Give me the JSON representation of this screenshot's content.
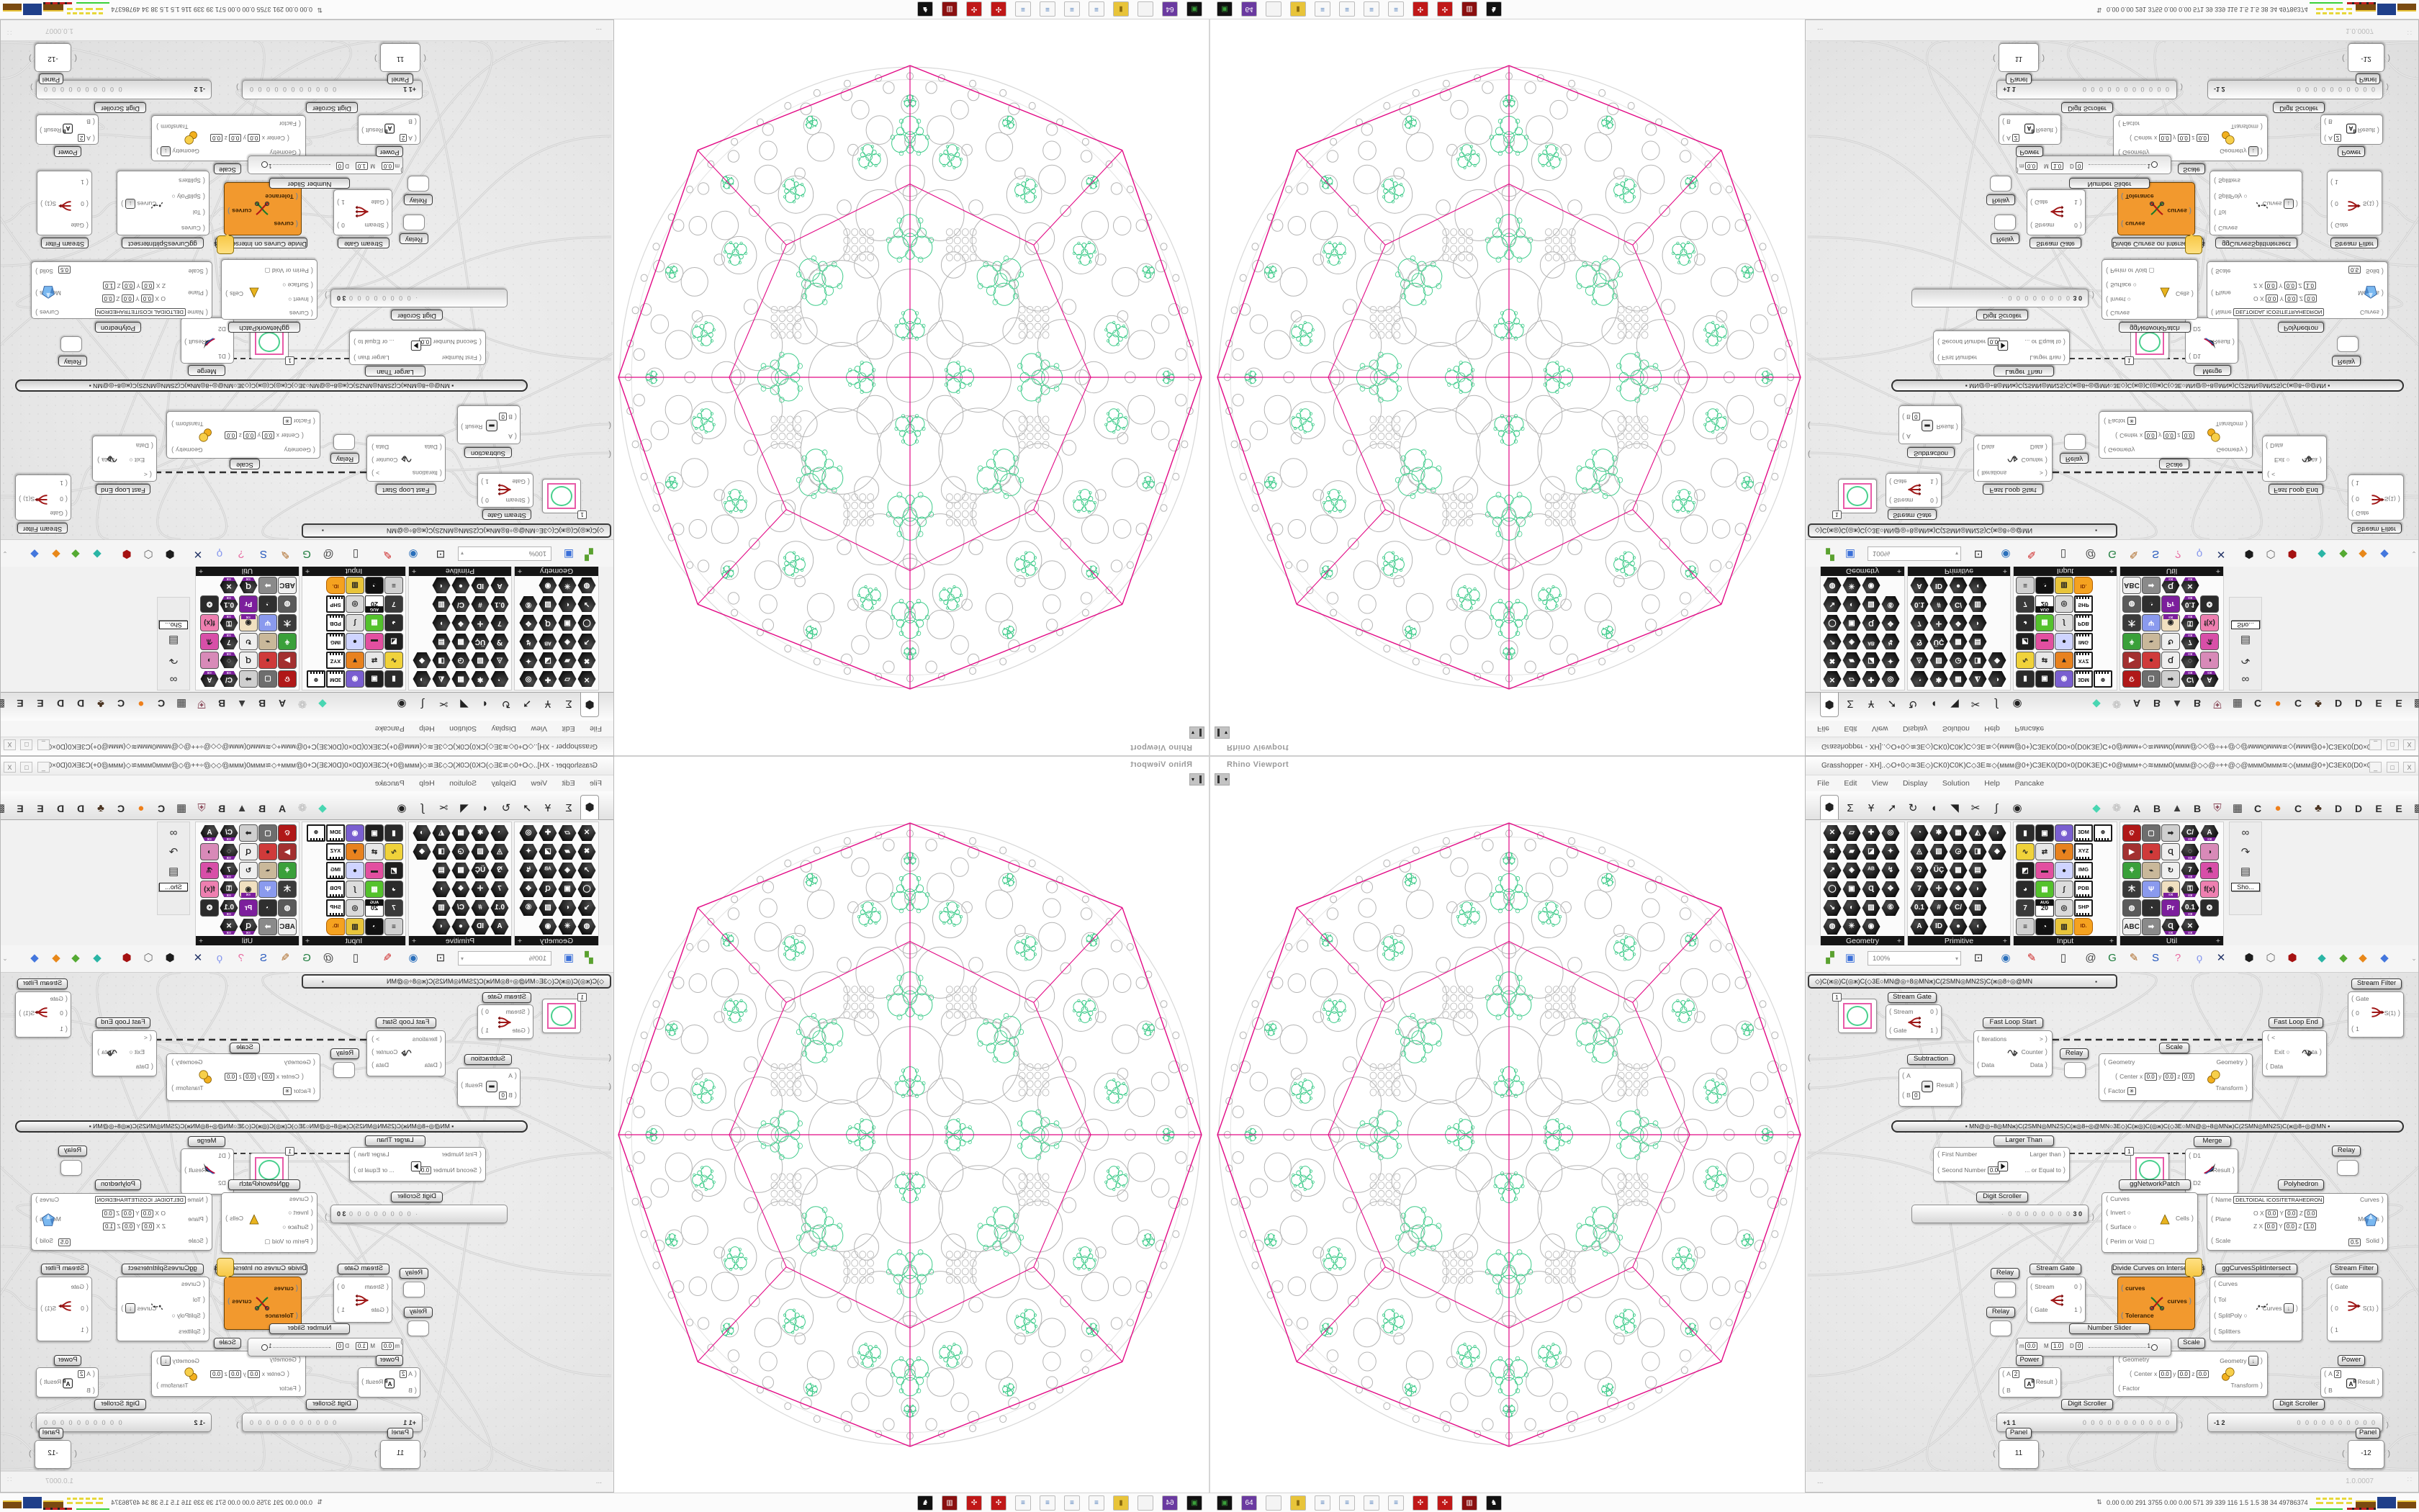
{
  "window": {
    "title": "Grasshopper - XH]..◇O+0◇≋3E◇)CK0)C0K)C◇3E≋◇(ммм@0+)C3EK0(D0×0(D0K3E)C+0@ммм+◇≋ммм0(ммм@◇◇@÷++@◇@ммм0ммм≋◇(ммм@0+)C3EK0(D0×0(D..",
    "icon": "X",
    "buttons": [
      "_",
      "□",
      "X"
    ]
  },
  "menu": {
    "items": [
      "File",
      "Edit",
      "View",
      "Display",
      "Solution",
      "Help",
      "Pancake"
    ]
  },
  "category_tabs": {
    "standard": [
      {
        "label": "⬢",
        "name": "params-tab",
        "sel": true
      },
      {
        "label": "Σ",
        "name": "maths-tab"
      },
      {
        "label": "Ұ",
        "name": "sets-tab"
      },
      {
        "label": "➚",
        "name": "vector-tab"
      },
      {
        "label": "↻",
        "name": "curve-tab"
      },
      {
        "label": "◖",
        "name": "surface-tab"
      },
      {
        "label": "◥",
        "name": "mesh-tab"
      },
      {
        "label": "✂",
        "name": "intersect-tab"
      },
      {
        "label": "∫",
        "name": "transform-tab"
      },
      {
        "label": "◉",
        "name": "display-tab"
      }
    ],
    "plugins": [
      {
        "label": "◆",
        "style": "teal"
      },
      {
        "label": "❁",
        "style": "outline"
      },
      {
        "label": "A",
        "style": "letter"
      },
      {
        "label": "B",
        "style": "letter"
      },
      {
        "label": "▲",
        "style": "dark"
      },
      {
        "label": "B",
        "style": "letter"
      },
      {
        "label": "⛨",
        "style": "shield"
      },
      {
        "label": "▦",
        "style": "dark"
      },
      {
        "label": "C",
        "style": "letter"
      },
      {
        "label": "●",
        "style": "orange"
      },
      {
        "label": "C",
        "style": "letter"
      },
      {
        "label": "♣",
        "style": "brown"
      },
      {
        "label": "D",
        "style": "letter"
      },
      {
        "label": "D",
        "style": "letter"
      },
      {
        "label": "E",
        "style": "letter"
      },
      {
        "label": "E",
        "style": "letter"
      },
      {
        "label": "▩",
        "style": "dark"
      }
    ]
  },
  "palette": {
    "footer_plus": "+",
    "overflow_label": "Sho...",
    "panels": [
      {
        "name": "Geometry",
        "icons": [
          [
            "hex,✕",
            "hex,▱",
            "hex,✚",
            "hex,◎"
          ],
          [
            "hex,✖",
            "hex,▰",
            "hex,◪",
            "hex,✦"
          ],
          [
            "hex,↗",
            "hex,◈",
            "hex,ᴬᴮ",
            "hex,↯"
          ],
          [
            "hex,◯",
            "hex,▣",
            "hex,Ɋ",
            "hex,✥"
          ],
          [
            "hex,↘",
            "hex,◐",
            "hex,▨",
            "hex,⑥"
          ],
          [
            "hex,◍",
            "hex,✳",
            "hex,◉"
          ]
        ]
      },
      {
        "name": "Primitive",
        "icons": [
          [
            "hex,◔",
            "hex,✱",
            "hex,▦",
            "hex,◭",
            "hex,◑"
          ],
          [
            "hex,◬",
            "hex,▧",
            "hex,◶",
            "hex,◨",
            "hex,◆"
          ],
          [
            "hex,⅋",
            "hex,ÜÇ",
            "hex,▩",
            "hex,▤"
          ],
          [
            "hex,7",
            "hex,✛",
            "hex,❖",
            "hex,◗"
          ],
          [
            "hex,0.1",
            "hex,#",
            "hex,C/",
            "hex,▥"
          ],
          [
            "hex,A",
            "hex,ID",
            "hex,●",
            "hex,◖"
          ]
        ]
      },
      {
        "name": "Input",
        "icons": [
          [
            "col,▮,#2b2b2b",
            "col,▣,#1f1f1f",
            "col,◉,#7a5fd0",
            "chip,3DM",
            "chip,⊕"
          ],
          [
            "col,∿,#f0d23a",
            "col,⇄,#e8e8e8",
            "col,▼,#e8821e",
            "chip,XYZ"
          ],
          [
            "col,◩,#1f1f1f",
            "col,▬,#e24fa0",
            "col,●,#cfd4ff",
            "chip,IMG"
          ],
          [
            "col,◕,#2b2b2b",
            "col,▦,#54c22c",
            "col,∫,#dddddd",
            "chip,PDB"
          ],
          [
            "col,7,#3a3a3a",
            "cal,20",
            "col,◎,#d9d9d9",
            "chip,SHP"
          ],
          [
            "col,≡,#d0d0d0",
            "col,◔,#111111",
            "col,▥,#e8c43a",
            "tag,ID."
          ]
        ]
      },
      {
        "name": "Util",
        "icons": [
          [
            "col,ତ,#b01818",
            "col,▢,#6e6e6e",
            "col,➡,#cfcfcf",
            "hexb,C/",
            "hexb,A"
          ],
          [
            "col,▶,#a33030",
            "col,●,#cf3a3a",
            "col,Ɋ,#efefef",
            "hexb,◌",
            "col,◑,#d88ab8"
          ],
          [
            "col,⚘,#3aa03a",
            "col,⌁,#c9b89a",
            "col,↻,#efefef",
            "hexb,7",
            "col,⚗,#d84fa8"
          ],
          [
            "col,⽊,#3a3a3a",
            "col,Ψ,#8a9aee",
            "colb,◉,#f0e0c0",
            "hexb,⚿",
            "col,f(x),#ee7fb0"
          ],
          [
            "col,◍,#5a5a5a",
            "col,◔,#2f2f2f",
            "col,Pr,#7c1f9c",
            "hexb,0.1",
            "col,❂,#2b2b2b"
          ],
          [
            "col,ABC,#efefef",
            "col,➡,#8a8a8a",
            "hexb,Ɋ",
            "hexb,✕"
          ]
        ]
      }
    ]
  },
  "toolbar": {
    "zoom": "100%",
    "dropdown": "▾"
  },
  "doc_tab": {
    "text": "◇)C(ж◎)C(◎ж)C(◇3E○MN@◎÷8◎MNж)C(2SMN◎MN2S)C(ж◎8÷◎@MN",
    "marker": "▪"
  },
  "group_bar": {
    "text": "▪   MN@◎÷8◎MNж)C(2SMN◎MN2S)C(ж◎8÷◎@MN○3E◇)C(ж◎)C(◎ж)C(◇3E○MN@◎÷8◎MNж)C(2SMN◎MN2S)C(ж◎8÷◎@MN   ▪"
  },
  "viewport": {
    "label": "Rhino Viewport",
    "dropdown": "▾"
  },
  "status": {
    "left": "...",
    "right": "1.0.0007",
    "grip": "∷"
  },
  "tray": {
    "arrow": "⇅",
    "stats": "0.00 0.00  291 3755 0.00 0.00  571   39   339  116   1.5   1.5   38    34  49786374",
    "monitor_icons": [
      "yellow-graph-icon",
      "brown-bar-icon",
      "blue-bar-icon",
      "brown-bar-icon",
      "green-line-icon",
      "red-dashes-icon"
    ]
  },
  "taskbar_icons": [
    "drive-green-icon",
    "floppy-64-icon",
    "ghost-icon",
    "folder-yellow-icon",
    "notepad-icon",
    "notepad-icon",
    "notepad-icon",
    "notepad-icon",
    "card-red-icon",
    "card-red-icon",
    "cassette-red-icon",
    "crow-icon"
  ],
  "nodes": {
    "miniPanel1": {
      "chip": "1",
      "icon": "green-circle-preview-icon"
    },
    "miniPanel2": {
      "chip": "1",
      "icon": "green-circle-preview-icon"
    },
    "streamGate1": {
      "label": "Stream Gate",
      "in": [
        "Stream",
        "Gate"
      ],
      "out": [
        "0",
        "1"
      ],
      "icon": "red-fork-icon"
    },
    "streamGate2": {
      "label": "Stream Gate",
      "in": [
        "Stream",
        "Gate"
      ],
      "out": [
        "0",
        "1"
      ],
      "icon": "red-fork-icon"
    },
    "streamFilter1": {
      "label": "Stream Filter",
      "in": [
        "Gate",
        "0",
        "1"
      ],
      "out": [
        "S(1)"
      ],
      "icon": "red-merge-icon"
    },
    "streamFilter2": {
      "label": "Stream Filter",
      "in": [
        "Gate",
        "0",
        "1"
      ],
      "out": [
        "S(1)"
      ],
      "icon": "red-merge-icon"
    },
    "fastLoopStart": {
      "label": "Fast Loop Start",
      "in": [
        "Iterations",
        "Data"
      ],
      "out": [
        ">",
        "Counter",
        "Data"
      ],
      "icon": "loop-coil-icon"
    },
    "fastLoopEnd": {
      "label": "Fast Loop End",
      "in": [
        "<",
        "Data"
      ],
      "mid": "Exit",
      "out": [
        "Data"
      ],
      "icon": "loop-coil-icon"
    },
    "relay1": {
      "label": "Relay"
    },
    "relay2": {
      "label": "Relay"
    },
    "relay3": {
      "label": "Relay"
    },
    "relay4": {
      "label": "Relay"
    },
    "subtraction": {
      "label": "Subtraction",
      "in": [
        "A",
        "B"
      ],
      "chip": "0",
      "out": [
        "Result"
      ],
      "icon": "minus-box-icon"
    },
    "scale1": {
      "label": "Scale",
      "in": [
        "Geometry",
        "Center",
        "Factor"
      ],
      "coords": [
        "x",
        "0.0",
        "y",
        "0.0",
        "z",
        "0.0"
      ],
      "factor_chip": "✳",
      "out": [
        "Geometry",
        "Transform"
      ],
      "icon": "yellow-balls-icon"
    },
    "scale2": {
      "label": "Scale",
      "in": [
        "Geometry",
        "Center",
        "Factor"
      ],
      "coords": [
        "x",
        "0.0",
        "y",
        "0.0",
        "z",
        "0.0"
      ],
      "out": [
        "Geometry",
        "Transform"
      ],
      "icon": "yellow-balls-icon",
      "btn": "↓"
    },
    "largerThan": {
      "label": "Larger Than",
      "in": [
        "First Number",
        "Second Number"
      ],
      "chip": "0.0",
      "out": [
        "Larger than",
        "... or Equal to"
      ],
      "icon": "greater-box-icon"
    },
    "merge": {
      "label": "Merge",
      "in": [
        "D1",
        "D2"
      ],
      "out": [
        "Result"
      ],
      "icon": "merge-swoosh-icon"
    },
    "digitScroller0": {
      "label": "Digit Scroller",
      "zeros": "· 0 0 0 0 0 0 0 0",
      "value": "3  0"
    },
    "digitScroller1": {
      "label": "Digit Scroller",
      "value": "+1 1",
      "zeros": "0 0 0 0 0 0 0 0 0 0 0"
    },
    "digitScroller2": {
      "label": "Digit Scroller",
      "value": "-1 2",
      "zeros": "0 0 0 0 0 0 0 0 0 0"
    },
    "panel1": {
      "label": "Panel",
      "value": "11"
    },
    "panel2": {
      "label": "Panel",
      "value": "-12"
    },
    "ggNetworkPatch": {
      "label": "ggNetworkPatch",
      "in": [
        "Curves",
        "Invert",
        "Surface",
        "Perim or Void"
      ],
      "out": [
        "Cells"
      ],
      "icon": "yellow-cone-icon"
    },
    "polyhedron": {
      "label": "Polyhedron",
      "name_param": "Name",
      "name_value": "DELTOIDAL ICOSITETRAHEDRON",
      "plane_param": "Plane",
      "plane_row1": "O X",
      "plane_row2": "Z X",
      "v1": "0.0",
      "v2": "0.0",
      "v3": "0.0",
      "v4": "0.0",
      "v5": "0.0",
      "v6": "1.0",
      "scale_param": "Scale",
      "scale_value": "0.5",
      "out": [
        "Curves",
        "Meshes",
        "Solid"
      ],
      "icon": "blue-gem-icon"
    },
    "divideCurves": {
      "label": "Divide Curves on Intersections",
      "in": [
        "curves",
        "Tolerance"
      ],
      "out": [
        "curves"
      ],
      "icon": "scissors-curves-icon"
    },
    "ggCurvesSplit": {
      "label": "ggCurvesSplitIntersect",
      "in": [
        "Curves",
        "Tol",
        "SplitPoly",
        "Splitters"
      ],
      "out": [
        "Curves"
      ],
      "btn": "↓",
      "icon": "split-curve-icon"
    },
    "numberSlider": {
      "label": "Number Slider",
      "m_label": "m",
      "m": "0.0",
      "M_label": "M",
      "M": "1.0",
      "D_label": "D",
      "D": "0",
      "value": "1"
    },
    "power1": {
      "label": "Power",
      "in": [
        "A",
        "B"
      ],
      "chip": "2",
      "out": [
        "Result"
      ],
      "icon": "power-ab-icon"
    },
    "power2": {
      "label": "Power",
      "in": [
        "A",
        "B"
      ],
      "chip": "2",
      "out": [
        "Result"
      ],
      "icon": "power-ab-icon"
    }
  },
  "sphere_pattern": {
    "type": "apollonian-circle-packing-on-polyhedron",
    "polyhedron_name": "DELTOIDAL ICOSITETRAHEDRON",
    "outline_color": "#e20985",
    "circle_color": "#b5b5b5",
    "accent_color": "#3ecb8a",
    "rim_color": "#d8d8d8",
    "octagon_axis_radius": 1.0,
    "octagon_corner_radius": 1.03,
    "inner_corner_radius": 0.62,
    "inner_mid_radius": 0.6,
    "rings": [
      {
        "n": 1,
        "d": 0,
        "r": 0.08,
        "a0": 0
      },
      {
        "n": 4,
        "d": 0.17,
        "r": 0.062,
        "a0": 45
      },
      {
        "n": 4,
        "d": 0.235,
        "r": 0.112,
        "a0": 0
      },
      {
        "n": 4,
        "d": 0.335,
        "r": 0.138,
        "a0": 45
      },
      {
        "n": 8,
        "d": 0.39,
        "r": 0.042,
        "a0": 22.5
      },
      {
        "n": 16,
        "d": 0.53,
        "r": 0.082,
        "a0": 11.25
      },
      {
        "n": 8,
        "d": 0.63,
        "r": 0.05,
        "a0": 0
      },
      {
        "n": 16,
        "d": 0.705,
        "r": 0.06,
        "a0": 11.25
      },
      {
        "n": 24,
        "d": 0.8,
        "r": 0.046,
        "a0": 7.5
      },
      {
        "n": 32,
        "d": 0.875,
        "r": 0.03,
        "a0": 0
      },
      {
        "n": 40,
        "d": 0.932,
        "r": 0.019,
        "a0": 4.5
      },
      {
        "n": 56,
        "d": 0.966,
        "r": 0.011,
        "a0": 0
      },
      {
        "n": 8,
        "d": 0.45,
        "r": 0.026,
        "a0": 0
      },
      {
        "n": 16,
        "d": 0.59,
        "r": 0.024,
        "a0": 0
      },
      {
        "n": 24,
        "d": 0.755,
        "r": 0.018,
        "a0": 0
      }
    ],
    "dot_patches": {
      "count": 8,
      "d": 0.46,
      "a0": 22.5,
      "grid": 4,
      "dot_r": 0.011,
      "spacing": 0.027
    },
    "green_clusters": [
      {
        "n": 4,
        "d": 0.165,
        "a0": 0,
        "s": 0.055
      },
      {
        "n": 8,
        "d": 0.44,
        "a0": 0,
        "s": 0.085
      },
      {
        "n": 16,
        "d": 0.72,
        "a0": 11.25,
        "s": 0.042
      },
      {
        "n": 16,
        "d": 0.885,
        "a0": 0,
        "s": 0.022
      },
      {
        "n": 2,
        "d": 0.77,
        "a0": 90,
        "s": 0.07
      }
    ]
  }
}
